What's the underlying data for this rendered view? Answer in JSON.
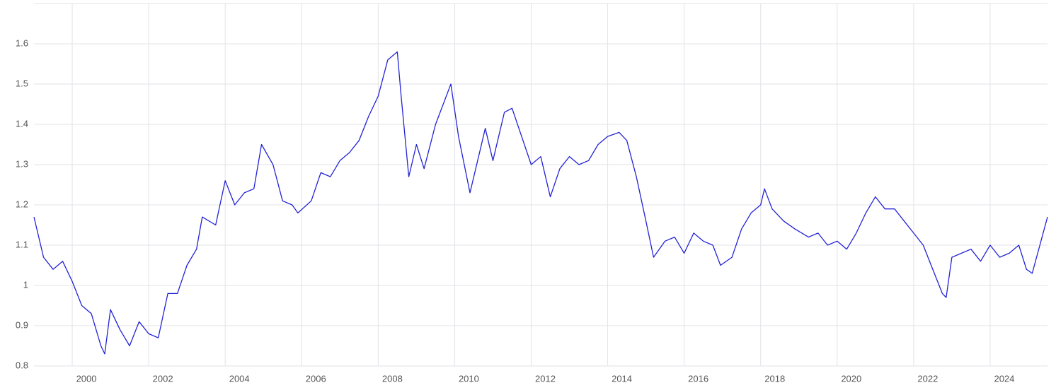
{
  "chart_data": {
    "type": "line",
    "x": [
      1999.0,
      1999.25,
      1999.5,
      1999.75,
      2000.0,
      2000.25,
      2000.5,
      2000.75,
      2000.85,
      2001.0,
      2001.25,
      2001.5,
      2001.75,
      2002.0,
      2002.25,
      2002.5,
      2002.75,
      2003.0,
      2003.25,
      2003.4,
      2003.75,
      2004.0,
      2004.25,
      2004.5,
      2004.75,
      2004.95,
      2005.25,
      2005.5,
      2005.75,
      2005.9,
      2006.25,
      2006.5,
      2006.75,
      2007.0,
      2007.25,
      2007.5,
      2007.75,
      2008.0,
      2008.25,
      2008.5,
      2008.6,
      2008.8,
      2009.0,
      2009.2,
      2009.5,
      2009.9,
      2010.1,
      2010.4,
      2010.5,
      2010.8,
      2011.0,
      2011.3,
      2011.5,
      2011.75,
      2012.0,
      2012.25,
      2012.5,
      2012.75,
      2013.0,
      2013.25,
      2013.5,
      2013.75,
      2014.0,
      2014.3,
      2014.5,
      2014.75,
      2015.0,
      2015.2,
      2015.5,
      2015.75,
      2016.0,
      2016.25,
      2016.5,
      2016.75,
      2016.95,
      2017.25,
      2017.5,
      2017.75,
      2018.0,
      2018.1,
      2018.3,
      2018.6,
      2018.9,
      2019.25,
      2019.5,
      2019.75,
      2020.0,
      2020.25,
      2020.5,
      2020.75,
      2021.0,
      2021.25,
      2021.5,
      2021.75,
      2022.0,
      2022.25,
      2022.5,
      2022.75,
      2022.85,
      2023.0,
      2023.25,
      2023.5,
      2023.75,
      2024.0,
      2024.25,
      2024.5,
      2024.75,
      2024.95,
      2025.1,
      2025.3,
      2025.5
    ],
    "series": [
      {
        "color": "#2222d6",
        "values": [
          1.17,
          1.07,
          1.04,
          1.06,
          1.01,
          0.95,
          0.93,
          0.85,
          0.83,
          0.94,
          0.89,
          0.85,
          0.91,
          0.88,
          0.87,
          0.98,
          0.98,
          1.05,
          1.09,
          1.17,
          1.15,
          1.26,
          1.2,
          1.23,
          1.24,
          1.35,
          1.3,
          1.21,
          1.2,
          1.18,
          1.21,
          1.28,
          1.27,
          1.31,
          1.33,
          1.36,
          1.42,
          1.47,
          1.56,
          1.58,
          1.47,
          1.27,
          1.35,
          1.29,
          1.4,
          1.5,
          1.37,
          1.23,
          1.27,
          1.39,
          1.31,
          1.43,
          1.44,
          1.37,
          1.3,
          1.32,
          1.22,
          1.29,
          1.32,
          1.3,
          1.31,
          1.35,
          1.37,
          1.38,
          1.36,
          1.27,
          1.16,
          1.07,
          1.11,
          1.12,
          1.08,
          1.13,
          1.11,
          1.1,
          1.05,
          1.07,
          1.14,
          1.18,
          1.2,
          1.24,
          1.19,
          1.16,
          1.14,
          1.12,
          1.13,
          1.1,
          1.11,
          1.09,
          1.13,
          1.18,
          1.22,
          1.19,
          1.19,
          1.16,
          1.13,
          1.1,
          1.04,
          0.98,
          0.97,
          1.07,
          1.08,
          1.09,
          1.06,
          1.1,
          1.07,
          1.08,
          1.1,
          1.04,
          1.03,
          1.1,
          1.17
        ]
      }
    ],
    "xlim": [
      1999.0,
      2025.5
    ],
    "ylim": [
      0.8,
      1.7
    ],
    "xticks": [
      2000,
      2002,
      2004,
      2006,
      2008,
      2010,
      2012,
      2014,
      2016,
      2018,
      2020,
      2022,
      2024
    ],
    "yticks": [
      0.8,
      0.9,
      1.0,
      1.1,
      1.2,
      1.3,
      1.4,
      1.5,
      1.6
    ],
    "grid": true
  }
}
